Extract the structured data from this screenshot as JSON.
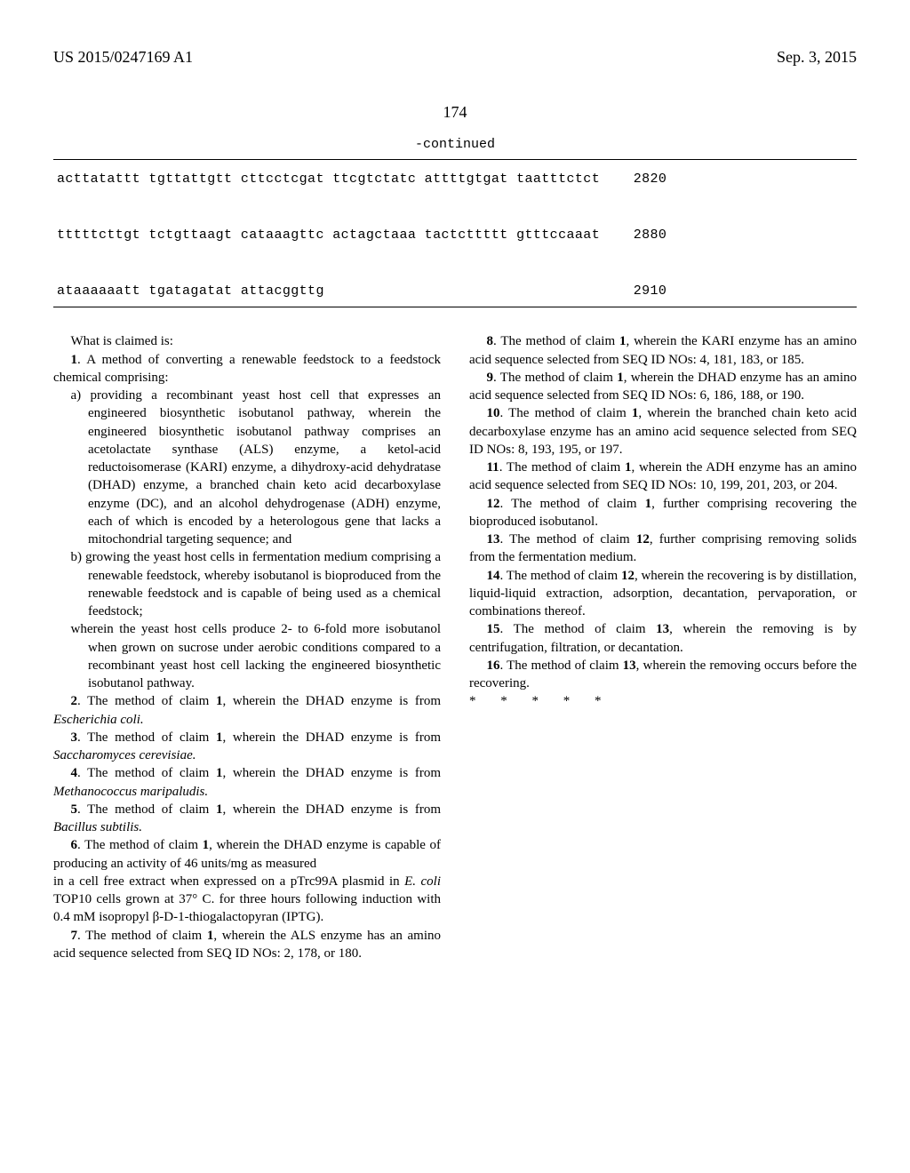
{
  "header": {
    "pub_no": "US 2015/0247169 A1",
    "date": "Sep. 3, 2015"
  },
  "page_number": "174",
  "continued": "-continued",
  "sequence": {
    "rows": [
      {
        "seq": "acttatattt tgttattgtt cttcctcgat ttcgtctatc attttgtgat taatttctct",
        "pos": "2820"
      },
      {
        "seq": "tttttcttgt tctgttaagt cataaagttc actagctaaa tactcttttt gtttccaaat",
        "pos": "2880"
      },
      {
        "seq": "ataaaaaatt tgatagatat attacggttg",
        "pos": "2910"
      }
    ]
  },
  "claims": {
    "intro": "What is claimed is:",
    "c1": "1",
    "c1_text_a": ". A method of converting a renewable feedstock to a feedstock chemical comprising:",
    "c1_a": "a) providing a recombinant yeast host cell that expresses an engineered biosynthetic isobutanol pathway, wherein the engineered biosynthetic isobutanol pathway comprises an acetolactate synthase (ALS) enzyme, a ketol-acid reductoisomerase (KARI) enzyme, a dihydroxy-acid dehydratase (DHAD) enzyme, a branched chain keto acid decarboxylase enzyme (DC), and an alcohol dehydrogenase (ADH) enzyme, each of which is encoded by a heterologous gene that lacks a mitochondrial targeting sequence; and",
    "c1_b": "b) growing the yeast host cells in fermentation medium comprising a renewable feedstock, whereby isobutanol is bioproduced from the renewable feedstock and is capable of being used as a chemical feedstock;",
    "c1_w": "wherein the yeast host cells produce 2- to 6-fold more isobutanol when grown on sucrose under aerobic conditions compared to a recombinant yeast host cell lacking the engineered biosynthetic isobutanol pathway.",
    "c2_pre": "2",
    "c2": ". The method of claim ",
    "c2_ref": "1",
    "c2_post": ", wherein the DHAD enzyme is from ",
    "c2_i": "Escherichia coli.",
    "c3_pre": "3",
    "c3_post": ", wherein the DHAD enzyme is from ",
    "c3_i": "Saccharomyces cerevisiae.",
    "c4_pre": "4",
    "c4_post": ", wherein the DHAD enzyme is from ",
    "c4_i": "Methanococcus maripaludis.",
    "c5_pre": "5",
    "c5_post": ", wherein the DHAD enzyme is from ",
    "c5_i": "Bacillus subtilis.",
    "c6_pre": "6",
    "c6_post": ", wherein the DHAD enzyme is capable of producing an activity of 46 units/mg as measured",
    "c6_cont_a": "in a cell free extract when expressed on a pTrc99A plasmid in ",
    "c6_cont_i": "E. coli",
    "c6_cont_b": " TOP10 cells grown at 37° C. for three hours following induction with 0.4 mM isopropyl β-D-1-thiogalactopyran (IPTG).",
    "c7_pre": "7",
    "c7_post": ", wherein the ALS enzyme has an amino acid sequence selected from SEQ ID NOs: 2, 178, or 180.",
    "c8_pre": "8",
    "c8_post": ", wherein the KARI enzyme has an amino acid sequence selected from SEQ ID NOs: 4, 181, 183, or 185.",
    "c9_pre": "9",
    "c9_post": ", wherein the DHAD enzyme has an amino acid sequence selected from SEQ ID NOs: 6, 186, 188, or 190.",
    "c10_pre": "10",
    "c10_post": ", wherein the branched chain keto acid decarboxylase enzyme has an amino acid sequence selected from SEQ ID NOs: 8, 193, 195, or 197.",
    "c11_pre": "11",
    "c11_post": ", wherein the ADH enzyme has an amino acid sequence selected from SEQ ID NOs: 10, 199, 201, 203, or 204.",
    "c12_pre": "12",
    "c12_post": ", further comprising recovering the bioproduced isobutanol.",
    "c13_pre": "13",
    "c13_ref": "12",
    "c13_post": ", further comprising removing solids from the fermentation medium.",
    "c14_pre": "14",
    "c14_ref": "12",
    "c14_post": ", wherein the recovering is by distillation, liquid-liquid extraction, adsorption, decantation, pervaporation, or combinations thereof.",
    "c15_pre": "15",
    "c15_ref": "13",
    "c15_post": ", wherein the removing is by centrifugation, filtration, or decantation.",
    "c16_pre": "16",
    "c16_ref": "13",
    "c16_post": ", wherein the removing occurs before the recovering.",
    "stars": "*   *   *   *   *"
  }
}
